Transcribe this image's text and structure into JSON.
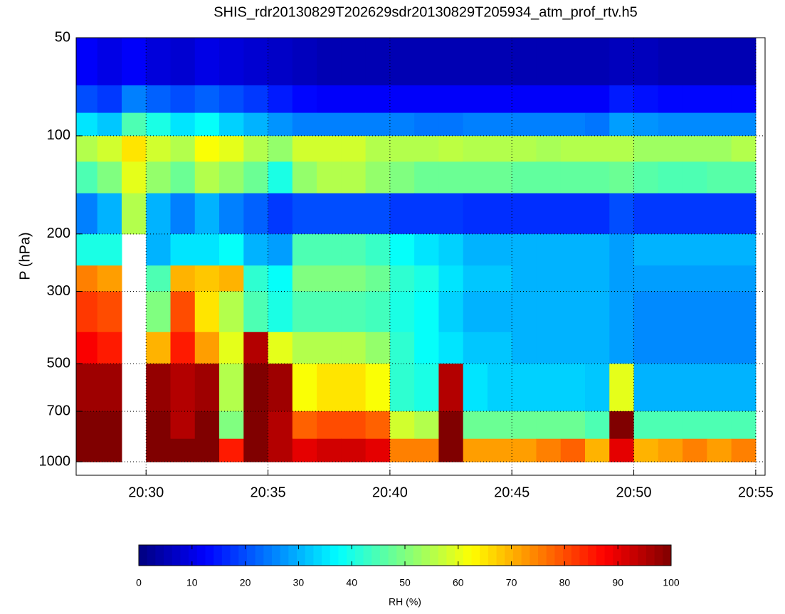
{
  "chart_data": {
    "type": "heatmap",
    "title": "SHIS_rdr20130829T202629sdr20130829T205934_atm_prof_rtv.h5",
    "ylabel": "P (hPa)",
    "x": [
      "20:27",
      "20:28",
      "20:29",
      "20:30",
      "20:31",
      "20:32",
      "20:33",
      "20:34",
      "20:35",
      "20:36",
      "20:37",
      "20:38",
      "20:39",
      "20:40",
      "20:41",
      "20:42",
      "20:43",
      "20:44",
      "20:45",
      "20:46",
      "20:47",
      "20:48",
      "20:49",
      "20:50",
      "20:51",
      "20:52",
      "20:53",
      "20:54"
    ],
    "ybins": [
      50,
      70,
      85,
      100,
      120,
      150,
      200,
      250,
      300,
      400,
      500,
      700,
      850,
      1000
    ],
    "values": [
      [
        12,
        10,
        12,
        9,
        8,
        10,
        9,
        8,
        7,
        6,
        5,
        5,
        5,
        5,
        5,
        5,
        5,
        5,
        5,
        5,
        5,
        5,
        6,
        6,
        5,
        5,
        5,
        5
      ],
      [
        20,
        18,
        25,
        22,
        20,
        22,
        20,
        18,
        15,
        13,
        12,
        12,
        12,
        12,
        12,
        12,
        12,
        12,
        12,
        12,
        12,
        12,
        15,
        14,
        13,
        13,
        13,
        13
      ],
      [
        35,
        32,
        45,
        40,
        35,
        38,
        33,
        30,
        27,
        25,
        25,
        25,
        25,
        25,
        24,
        24,
        25,
        25,
        25,
        25,
        25,
        24,
        28,
        27,
        26,
        26,
        26,
        26
      ],
      [
        55,
        58,
        65,
        58,
        55,
        62,
        60,
        55,
        52,
        58,
        58,
        58,
        55,
        55,
        55,
        56,
        55,
        55,
        55,
        54,
        55,
        55,
        55,
        53,
        53,
        53,
        53,
        55
      ],
      [
        45,
        50,
        60,
        52,
        48,
        55,
        52,
        48,
        40,
        52,
        55,
        55,
        52,
        50,
        48,
        48,
        48,
        48,
        47,
        47,
        47,
        47,
        48,
        46,
        45,
        45,
        46,
        46
      ],
      [
        25,
        30,
        55,
        30,
        25,
        30,
        25,
        22,
        18,
        20,
        20,
        20,
        20,
        18,
        18,
        18,
        17,
        17,
        17,
        17,
        17,
        17,
        20,
        18,
        18,
        18,
        18,
        18
      ],
      [
        40,
        40,
        null,
        30,
        35,
        35,
        38,
        30,
        28,
        45,
        45,
        45,
        43,
        38,
        35,
        33,
        30,
        30,
        30,
        30,
        30,
        30,
        28,
        30,
        30,
        30,
        30,
        30
      ],
      [
        75,
        72,
        null,
        45,
        70,
        68,
        70,
        42,
        38,
        50,
        50,
        50,
        48,
        42,
        40,
        35,
        32,
        32,
        30,
        30,
        30,
        30,
        28,
        28,
        28,
        28,
        28,
        28
      ],
      [
        82,
        80,
        null,
        50,
        80,
        65,
        55,
        45,
        40,
        45,
        45,
        45,
        44,
        40,
        38,
        33,
        30,
        30,
        30,
        30,
        30,
        30,
        28,
        26,
        26,
        26,
        26,
        26
      ],
      [
        88,
        85,
        null,
        70,
        85,
        72,
        60,
        95,
        60,
        55,
        55,
        55,
        52,
        42,
        38,
        35,
        32,
        32,
        30,
        30,
        30,
        30,
        28,
        26,
        26,
        26,
        26,
        26
      ],
      [
        97,
        97,
        null,
        98,
        95,
        97,
        55,
        100,
        97,
        62,
        65,
        65,
        62,
        42,
        40,
        95,
        35,
        33,
        33,
        33,
        33,
        32,
        60,
        30,
        30,
        30,
        30,
        30
      ],
      [
        100,
        100,
        null,
        100,
        95,
        100,
        50,
        100,
        95,
        78,
        80,
        80,
        78,
        58,
        55,
        100,
        48,
        48,
        48,
        48,
        48,
        45,
        100,
        45,
        45,
        45,
        45,
        45
      ],
      [
        100,
        100,
        null,
        100,
        100,
        100,
        85,
        100,
        95,
        90,
        92,
        92,
        90,
        75,
        75,
        100,
        72,
        72,
        72,
        75,
        78,
        70,
        90,
        70,
        72,
        75,
        72,
        75
      ]
    ],
    "xlim": [
      "20:27:08",
      "20:55:23"
    ],
    "xticks": [
      "20:30",
      "20:35",
      "20:40",
      "20:45",
      "20:50",
      "20:55"
    ],
    "ylim": [
      50,
      1100
    ],
    "yticks": [
      50,
      100,
      200,
      300,
      500,
      700,
      1000
    ],
    "ylog": true,
    "yreversed": true,
    "grid": true,
    "colorbar": {
      "label": "RH (%)",
      "lim": [
        0,
        100
      ],
      "ticks": [
        0,
        10,
        20,
        30,
        40,
        50,
        60,
        70,
        80,
        90,
        100
      ],
      "colormap": "jet"
    }
  }
}
